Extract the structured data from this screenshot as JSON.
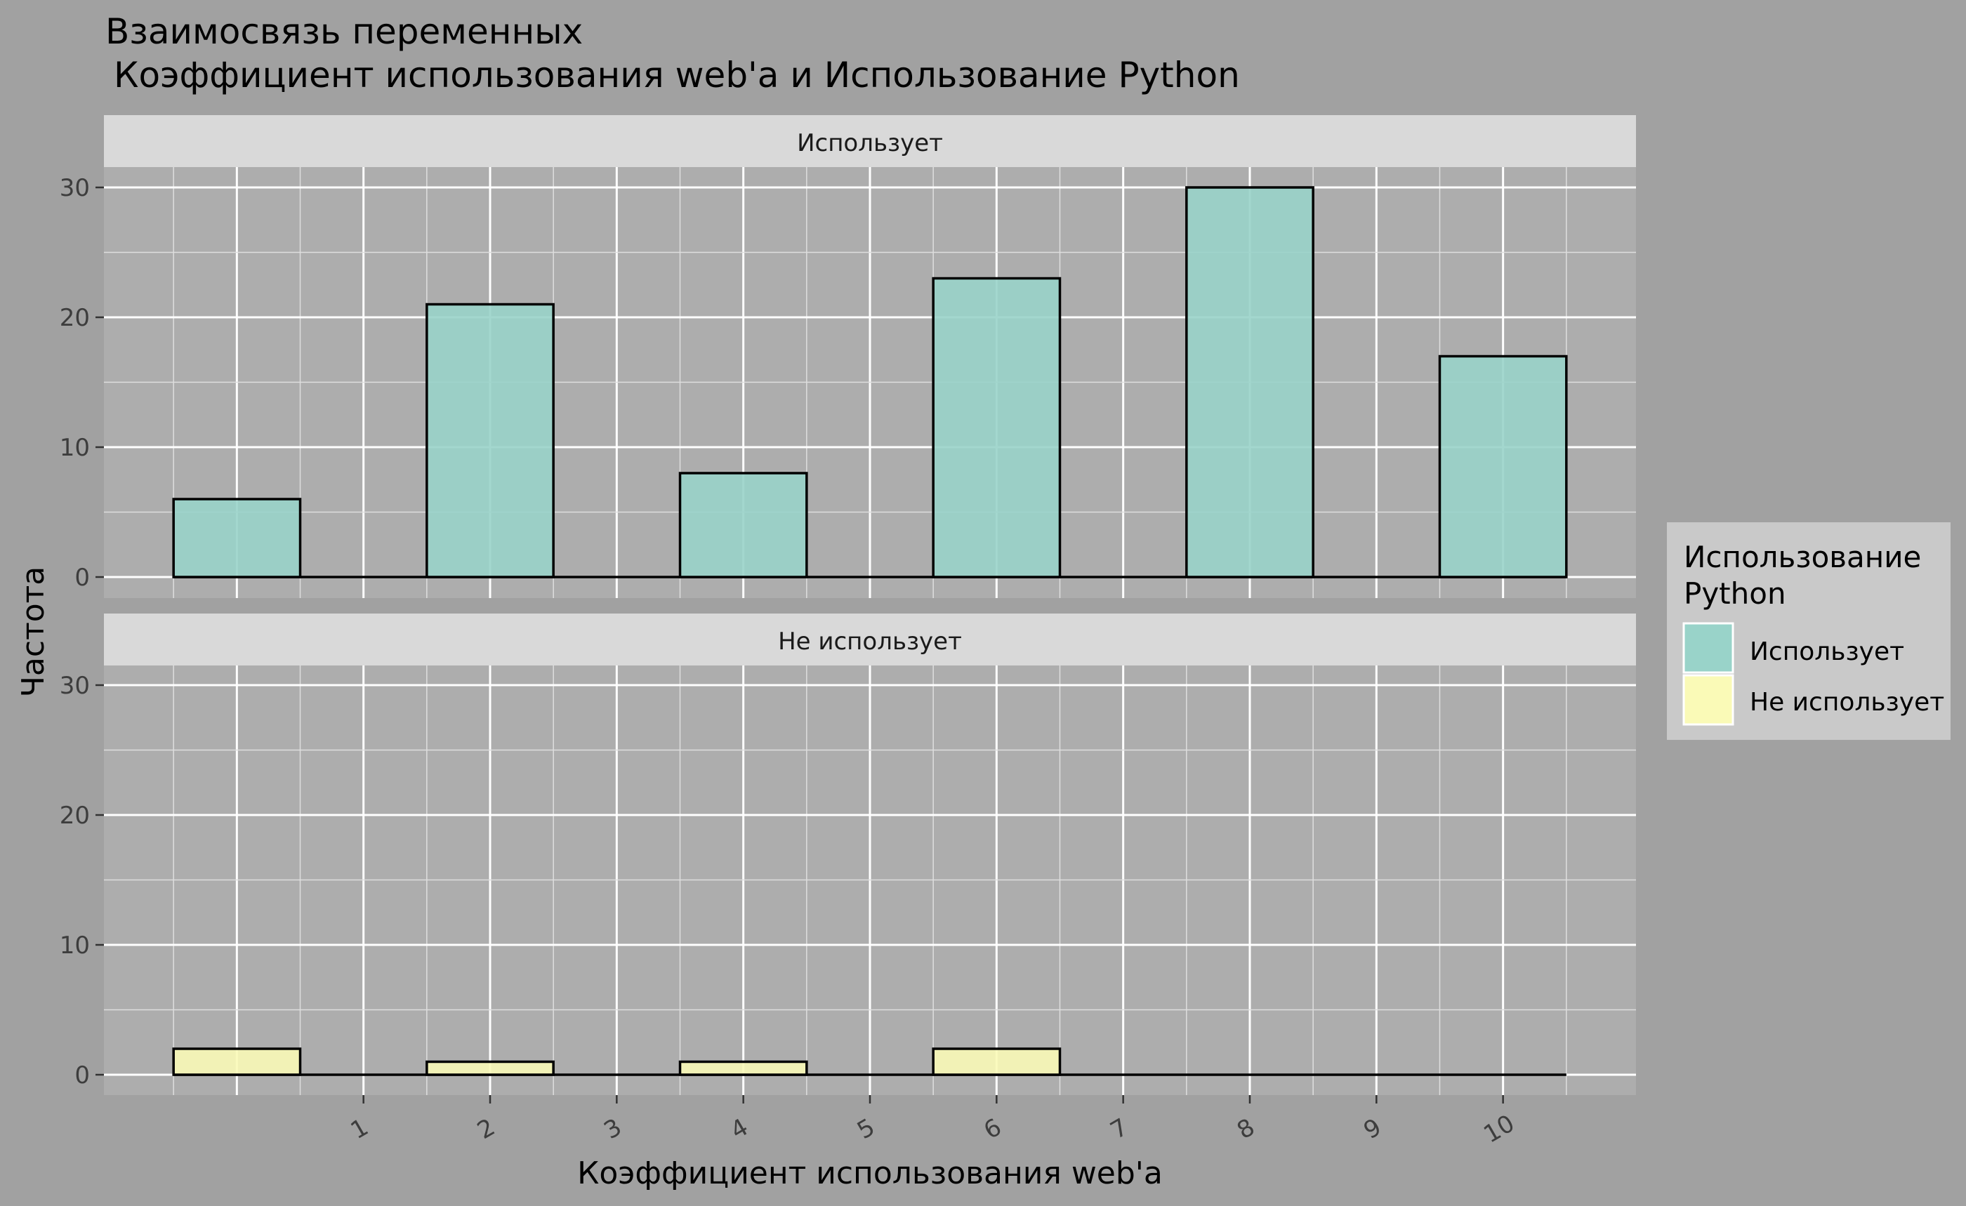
{
  "title_line1": "Взаимосвязь переменных",
  "title_line2": "Коэффициент использования web'a и Использование Python",
  "legend": {
    "title_line1": "Использование",
    "title_line2": "Python",
    "items": [
      {
        "label": "Использует",
        "color": "#99d3c9"
      },
      {
        "label": "Не использует",
        "color": "#fafab7"
      }
    ]
  },
  "colors": {
    "background": "#a1a1a1",
    "panel": "#adadad",
    "strip": "#d9d9d9",
    "legend_bg": "#c9c9c9",
    "grid_major": "#ffffff",
    "grid_minor": "#dedede"
  },
  "chart_data": {
    "type": "bar",
    "title": "Взаимосвязь переменных\n Коэффициент использования web'a и Использование Python",
    "xlabel": "Коэффициент использования web'a",
    "ylabel": "Частота",
    "x_ticks": [
      "1",
      "2",
      "3",
      "4",
      "5",
      "6",
      "7",
      "8",
      "9",
      "10"
    ],
    "y_ticks": [
      "0",
      "10",
      "20",
      "30"
    ],
    "ylim": [
      0,
      32
    ],
    "bin_width": 1,
    "bin_centers": [
      0,
      2,
      4,
      6,
      8,
      10
    ],
    "facets": [
      {
        "label": "Использует",
        "fill": "#99d3c9",
        "values": [
          6,
          21,
          8,
          23,
          30,
          17
        ]
      },
      {
        "label": "Не использует",
        "fill": "#fafab7",
        "values": [
          2,
          1,
          1,
          2,
          0,
          0
        ]
      }
    ],
    "legend_position": "right"
  }
}
